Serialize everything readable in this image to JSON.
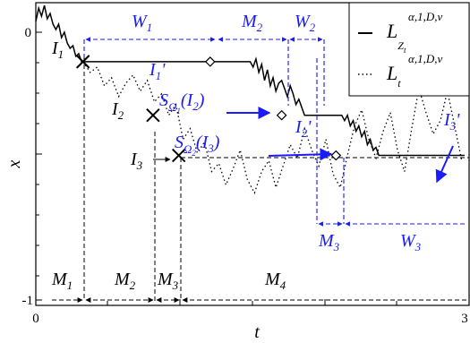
{
  "chart_data": {
    "type": "line",
    "xlabel": "t",
    "ylabel": "x",
    "x_ticks": [
      "0",
      "3"
    ],
    "y_ticks": [
      "0",
      "-1"
    ],
    "xlim": [
      0,
      3
    ],
    "ylim": [
      -1.0,
      0.1
    ],
    "grid": false,
    "legend_position": "top-right",
    "legend": [
      {
        "label_base": "L",
        "label_sup": "α,1,D,v",
        "label_sub": "Z",
        "label_subsub": "t",
        "style": "solid"
      },
      {
        "label_base": "L",
        "label_sup": "α,1,D,v",
        "label_sub": "t",
        "label_subsub": "",
        "style": "dotted"
      }
    ],
    "colors": {
      "annotation": "#1a1aff",
      "series": "#000000"
    },
    "series": [
      {
        "name": "L^{α,1,D,v}_{Z_t}",
        "style": "solid",
        "x": [
          0.0,
          0.02,
          0.04,
          0.06,
          0.08,
          0.1,
          0.12,
          0.14,
          0.16,
          0.18,
          0.2,
          0.22,
          0.24,
          0.26,
          0.28,
          0.3,
          0.32,
          0.33,
          0.4,
          0.5,
          0.6,
          0.7,
          0.8,
          0.9,
          1.0,
          1.1,
          1.2,
          1.3,
          1.4,
          1.5,
          1.52,
          1.54,
          1.56,
          1.58,
          1.6,
          1.62,
          1.64,
          1.66,
          1.68,
          1.7,
          1.72,
          1.74,
          1.76,
          1.78,
          1.8,
          1.82,
          1.84,
          1.86,
          1.88,
          1.9,
          1.92,
          1.94,
          1.96,
          1.98,
          2.0,
          2.02,
          2.04,
          2.06,
          2.08,
          2.1,
          2.12,
          2.14,
          2.16,
          2.18,
          2.2,
          2.22,
          2.24,
          2.26,
          2.28,
          2.3,
          2.32,
          2.34,
          2.36,
          2.38,
          2.4,
          2.42,
          2.44,
          2.46,
          2.48,
          2.5,
          2.7,
          2.9,
          3.0
        ],
        "y": [
          0.04,
          0.09,
          0.06,
          0.1,
          0.05,
          0.07,
          0.03,
          0.01,
          0.03,
          -0.02,
          0.0,
          -0.04,
          -0.06,
          -0.05,
          -0.09,
          -0.08,
          -0.11,
          -0.11,
          -0.11,
          -0.11,
          -0.11,
          -0.11,
          -0.11,
          -0.11,
          -0.11,
          -0.11,
          -0.11,
          -0.11,
          -0.11,
          -0.11,
          -0.13,
          -0.1,
          -0.15,
          -0.12,
          -0.18,
          -0.14,
          -0.2,
          -0.17,
          -0.22,
          -0.19,
          -0.18,
          -0.21,
          -0.24,
          -0.2,
          -0.23,
          -0.27,
          -0.25,
          -0.28,
          -0.31,
          -0.31,
          -0.31,
          -0.31,
          -0.31,
          -0.31,
          -0.31,
          -0.31,
          -0.31,
          -0.31,
          -0.31,
          -0.31,
          -0.31,
          -0.31,
          -0.33,
          -0.31,
          -0.35,
          -0.33,
          -0.37,
          -0.35,
          -0.39,
          -0.37,
          -0.42,
          -0.4,
          -0.44,
          -0.43,
          -0.46,
          -0.46,
          -0.46,
          -0.46,
          -0.46,
          -0.46,
          -0.46,
          -0.46,
          -0.46
        ]
      },
      {
        "name": "L^{α,1,D,v}_t",
        "style": "dotted",
        "x": [
          0.33,
          0.38,
          0.43,
          0.48,
          0.53,
          0.58,
          0.63,
          0.68,
          0.73,
          0.78,
          0.83,
          0.88,
          0.93,
          0.98,
          1.03,
          1.08,
          1.13,
          1.18,
          1.23,
          1.28,
          1.33,
          1.38,
          1.43,
          1.48,
          1.53,
          1.58,
          1.63,
          1.68,
          1.73,
          1.78,
          1.83,
          1.88,
          1.93,
          1.98,
          2.03,
          2.08,
          2.13,
          2.18,
          2.23,
          2.28,
          2.33,
          2.38,
          2.43,
          2.48,
          2.53,
          2.58,
          2.63,
          2.68,
          2.73,
          2.78,
          2.83,
          2.88,
          2.93,
          2.98
        ],
        "y": [
          -0.11,
          -0.15,
          -0.13,
          -0.2,
          -0.17,
          -0.24,
          -0.19,
          -0.16,
          -0.22,
          -0.18,
          -0.26,
          -0.23,
          -0.31,
          -0.27,
          -0.4,
          -0.36,
          -0.45,
          -0.41,
          -0.52,
          -0.49,
          -0.57,
          -0.51,
          -0.44,
          -0.55,
          -0.6,
          -0.52,
          -0.48,
          -0.58,
          -0.5,
          -0.42,
          -0.47,
          -0.36,
          -0.44,
          -0.5,
          -0.4,
          -0.53,
          -0.58,
          -0.46,
          -0.35,
          -0.29,
          -0.4,
          -0.47,
          -0.37,
          -0.3,
          -0.44,
          -0.52,
          -0.36,
          -0.21,
          -0.3,
          -0.38,
          -0.33,
          -0.22,
          -0.35,
          -0.48
        ]
      }
    ],
    "markers": [
      {
        "symbol": "X",
        "x": 0.33,
        "y": -0.11,
        "label": "I",
        "label_sub": "1"
      },
      {
        "symbol": "X",
        "x": 0.82,
        "y": -0.31,
        "label": "I",
        "label_sub": "2"
      },
      {
        "symbol": "X",
        "x": 1.0,
        "y": -0.46,
        "label": "I",
        "label_sub": "3"
      },
      {
        "symbol": "diamond",
        "x": 1.22,
        "y": -0.11
      },
      {
        "symbol": "diamond",
        "x": 1.72,
        "y": -0.31
      },
      {
        "symbol": "diamond",
        "x": 2.1,
        "y": -0.46
      }
    ],
    "labels": {
      "I1": {
        "base": "I",
        "sub": "1"
      },
      "I1p": {
        "base": "I",
        "sub": "1",
        "prime": "'"
      },
      "I2": {
        "base": "I",
        "sub": "2"
      },
      "I2p": {
        "base": "I",
        "sub": "2",
        "prime": "'"
      },
      "I3": {
        "base": "I",
        "sub": "3"
      },
      "I3p": {
        "base": "I",
        "sub": "3",
        "prime": "'"
      },
      "W1": {
        "base": "W",
        "sub": "1"
      },
      "W2": {
        "base": "W",
        "sub": "2"
      },
      "W3": {
        "base": "W",
        "sub": "3"
      },
      "M1": {
        "base": "M",
        "sub": "1"
      },
      "M2": {
        "base": "M",
        "sub": "2"
      },
      "M2top": {
        "base": "M",
        "sub": "2"
      },
      "M3": {
        "base": "M",
        "sub": "3"
      },
      "M3blue": {
        "base": "M",
        "sub": "3"
      },
      "M4": {
        "base": "M",
        "sub": "4"
      },
      "S1": {
        "base": "S",
        "sub": "Ω",
        "subsub": "1",
        "arg": "(I",
        "argsub": "2",
        "close": ")"
      },
      "S2": {
        "base": "S",
        "sub": "Ω",
        "subsub": "2",
        "arg": "(I",
        "argsub": "3",
        "close": ")"
      }
    }
  }
}
